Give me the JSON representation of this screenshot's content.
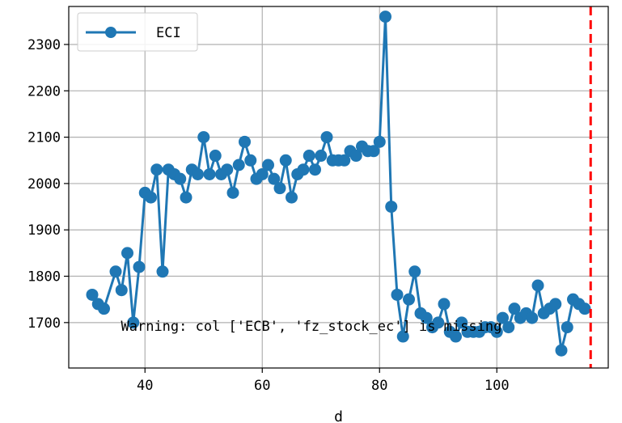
{
  "chart_data": {
    "type": "line",
    "xlabel": "d",
    "ylabel": "",
    "xlim": [
      27,
      119
    ],
    "ylim": [
      1602,
      2382
    ],
    "xticks": [
      40,
      60,
      80,
      100
    ],
    "yticks": [
      1700,
      1800,
      1900,
      2000,
      2100,
      2200,
      2300
    ],
    "grid": true,
    "legend_position": "upper-left",
    "series": [
      {
        "name": "ECI",
        "color": "#1f77b4",
        "marker": "circle",
        "x": [
          31,
          32,
          33,
          35,
          36,
          37,
          38,
          39,
          40,
          41,
          42,
          43,
          44,
          45,
          46,
          47,
          48,
          49,
          50,
          51,
          52,
          53,
          54,
          55,
          56,
          57,
          58,
          59,
          60,
          61,
          62,
          63,
          64,
          65,
          66,
          67,
          68,
          69,
          70,
          71,
          72,
          73,
          74,
          75,
          76,
          77,
          78,
          79,
          80,
          81,
          82,
          83,
          84,
          85,
          86,
          87,
          88,
          89,
          90,
          91,
          92,
          93,
          94,
          95,
          96,
          97,
          98,
          99,
          100,
          101,
          102,
          103,
          104,
          105,
          106,
          107,
          108,
          109,
          110,
          111,
          112,
          113,
          114,
          115
        ],
        "y": [
          1760,
          1740,
          1730,
          1810,
          1770,
          1850,
          1700,
          1820,
          1980,
          1970,
          2030,
          1810,
          2030,
          2020,
          2010,
          1970,
          2030,
          2020,
          2100,
          2020,
          2060,
          2020,
          2030,
          1980,
          2040,
          2090,
          2050,
          2010,
          2020,
          2040,
          2010,
          1990,
          2050,
          1970,
          2020,
          2030,
          2060,
          2030,
          2060,
          2100,
          2050,
          2050,
          2050,
          2070,
          2060,
          2080,
          2070,
          2070,
          2090,
          2360,
          1950,
          1760,
          1670,
          1750,
          1810,
          1720,
          1710,
          1690,
          1700,
          1740,
          1680,
          1670,
          1700,
          1680,
          1680,
          1680,
          1690,
          1690,
          1680,
          1710,
          1690,
          1730,
          1710,
          1720,
          1710,
          1780,
          1720,
          1730,
          1740,
          1640,
          1690,
          1750,
          1740,
          1730
        ]
      }
    ],
    "vline": {
      "x": 116,
      "color": "#ff0000",
      "style": "dashed"
    },
    "annotation": {
      "text": "Warning: col ['ECB', 'fz_stock_ec'] is missing",
      "x": 37,
      "y": 1700
    }
  }
}
